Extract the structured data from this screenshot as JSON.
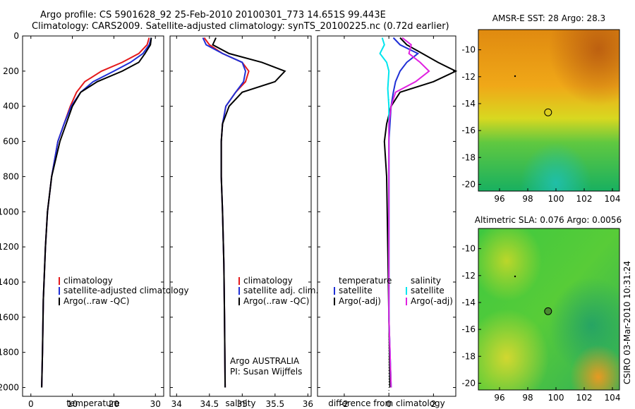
{
  "titles": {
    "line1": "Argo profile: CS 5901628_92 25-Feb-2010 20100301_773 14.651S 99.443E",
    "line2": "Climatology: CARS2009. Satellite-adjusted climatology: synTS_20100225.nc (0.72d earlier)"
  },
  "colors": {
    "climatology": "#e41a1c",
    "satellite": "#1f2fd6",
    "argo": "#000000",
    "sat_salinity": "#00e5ee",
    "argo_adj_salinity": "#e020e0"
  },
  "chart_data": [
    {
      "type": "line",
      "xlabel": "temperature",
      "ylabel": "",
      "xlim": [
        -2,
        32
      ],
      "ylim": [
        0,
        2050
      ],
      "y_reversed": true,
      "xticks": [
        "0",
        "10",
        "20",
        "30"
      ],
      "yticks": [
        "0",
        "200",
        "400",
        "600",
        "800",
        "1000",
        "1200",
        "1400",
        "1600",
        "1800",
        "2000"
      ],
      "legend": [
        "climatology",
        "satellite-adjusted climatology",
        "Argo(..raw -QC)"
      ],
      "legend_placement": "lower-right",
      "series": [
        {
          "name": "climatology",
          "x": [
            28.5,
            28,
            26,
            22,
            17,
            13,
            11,
            9.5,
            8,
            6.5,
            5,
            4,
            3.5,
            3,
            2.8,
            2.6
          ],
          "y": [
            10,
            50,
            100,
            150,
            200,
            260,
            320,
            400,
            500,
            600,
            800,
            1000,
            1200,
            1500,
            1800,
            2000
          ]
        },
        {
          "name": "satellite-adjusted climatology",
          "x": [
            29,
            28.5,
            27,
            24,
            20,
            15,
            12,
            9.7,
            8,
            6.5,
            5,
            4,
            3.5,
            3,
            2.8,
            2.6
          ],
          "y": [
            10,
            50,
            100,
            150,
            200,
            260,
            320,
            400,
            500,
            600,
            800,
            1000,
            1200,
            1500,
            1800,
            2000
          ]
        },
        {
          "name": "Argo(..raw -QC)",
          "x": [
            29,
            28.8,
            27.5,
            26,
            22,
            16,
            12,
            10,
            8.5,
            7,
            5,
            4,
            3.5,
            3,
            2.8,
            2.6
          ],
          "y": [
            10,
            50,
            100,
            150,
            200,
            260,
            320,
            400,
            500,
            600,
            800,
            1000,
            1200,
            1500,
            1800,
            2000
          ]
        }
      ]
    },
    {
      "type": "line",
      "xlabel": "salinity",
      "xlim": [
        33.9,
        36.05
      ],
      "ylim": [
        0,
        2050
      ],
      "y_reversed": true,
      "xticks": [
        "34",
        "34.5",
        "35",
        "35.5",
        "36"
      ],
      "legend": [
        "climatology",
        "satellite adj. clim.",
        "Argo(..raw -QC)"
      ],
      "legend_placement": "lower-right",
      "annotations": [
        "Argo AUSTRALIA",
        "PI: Susan Wijffels"
      ],
      "series": [
        {
          "name": "climatology",
          "x": [
            34.42,
            34.5,
            34.7,
            35.0,
            35.1,
            35.05,
            34.9,
            34.75,
            34.7,
            34.68,
            34.68,
            34.7,
            34.72,
            34.73,
            34.74
          ],
          "y": [
            10,
            50,
            100,
            150,
            200,
            260,
            320,
            400,
            500,
            600,
            800,
            1000,
            1300,
            1600,
            2000
          ]
        },
        {
          "name": "satellite adj. clim.",
          "x": [
            34.4,
            34.45,
            34.7,
            35.0,
            35.05,
            35.02,
            34.9,
            34.75,
            34.7,
            34.68,
            34.68,
            34.7,
            34.72,
            34.73,
            34.74
          ],
          "y": [
            10,
            50,
            100,
            150,
            200,
            260,
            320,
            400,
            500,
            600,
            800,
            1000,
            1300,
            1600,
            2000
          ]
        },
        {
          "name": "Argo(..raw -QC)",
          "x": [
            34.6,
            34.55,
            34.8,
            35.3,
            35.65,
            35.5,
            35.0,
            34.8,
            34.7,
            34.68,
            34.68,
            34.7,
            34.72,
            34.73,
            34.74
          ],
          "y": [
            10,
            50,
            100,
            150,
            200,
            260,
            320,
            400,
            500,
            600,
            800,
            1000,
            1300,
            1600,
            2000
          ]
        }
      ]
    },
    {
      "type": "line",
      "xlabel": "difference from climatology",
      "xlim": [
        -3.2,
        3.0
      ],
      "ylim": [
        0,
        2050
      ],
      "y_reversed": true,
      "xticks": [
        "-2",
        "0",
        "2"
      ],
      "legend": [
        "temperature",
        "satellite",
        "Argo(-adj)",
        "salinity",
        "satellite",
        "Argo(-adj)"
      ],
      "legend_placement": "lower",
      "series": [
        {
          "name": "satellite",
          "x": [
            0.2,
            0.5,
            1.3,
            0.8,
            0.5,
            0.3,
            0.2,
            0.1,
            0.05,
            0,
            0,
            0,
            0,
            0.1
          ],
          "y": [
            10,
            50,
            100,
            150,
            200,
            260,
            320,
            400,
            500,
            600,
            800,
            1200,
            1600,
            2000
          ]
        },
        {
          "name": "Argo(-adj)",
          "x": [
            0.5,
            0.8,
            1.5,
            2.2,
            3.0,
            2.0,
            0.5,
            0.1,
            -0.1,
            -0.2,
            -0.1,
            -0.05,
            0,
            0.05
          ],
          "y": [
            10,
            50,
            100,
            150,
            200,
            260,
            320,
            400,
            500,
            600,
            800,
            1200,
            1600,
            2000
          ]
        },
        {
          "name": "satellite",
          "x": [
            -0.3,
            -0.2,
            -0.4,
            -0.1,
            0.0,
            -0.05,
            0.0,
            0.0,
            0.0,
            0.0,
            0.0,
            0.0,
            0.1
          ],
          "y": [
            10,
            50,
            100,
            150,
            200,
            300,
            400,
            500,
            600,
            800,
            1200,
            1600,
            2000
          ]
        },
        {
          "name": "Argo(-adj)",
          "x": [
            0.6,
            1.0,
            0.9,
            1.4,
            1.8,
            1.2,
            0.3,
            0.1,
            0.0,
            0.0,
            0.0,
            0.0,
            0.1
          ],
          "y": [
            10,
            50,
            100,
            150,
            200,
            260,
            320,
            400,
            500,
            800,
            1200,
            1600,
            2000
          ]
        }
      ]
    },
    {
      "type": "heatmap",
      "title": "AMSR-E SST: 28 Argo: 28.3",
      "xlim": [
        94.5,
        104.5
      ],
      "ylim": [
        -20.5,
        -8.5
      ],
      "xticks": [
        "96",
        "98",
        "100",
        "102",
        "104"
      ],
      "yticks": [
        "-10",
        "-12",
        "-14",
        "-16",
        "-18",
        "-20"
      ],
      "marker": {
        "lon": 99.44,
        "lat": -14.65
      }
    },
    {
      "type": "heatmap",
      "title": "Altimetric SLA: 0.076 Argo: 0.0056",
      "xlim": [
        94.5,
        104.5
      ],
      "ylim": [
        -20.5,
        -8.5
      ],
      "xticks": [
        "96",
        "98",
        "100",
        "102",
        "104"
      ],
      "yticks": [
        "-10",
        "-12",
        "-14",
        "-16",
        "-18",
        "-20"
      ],
      "marker": {
        "lon": 99.44,
        "lat": -14.65
      }
    }
  ],
  "side_label": "CSIRO 03-Mar-2010 10:31:24"
}
